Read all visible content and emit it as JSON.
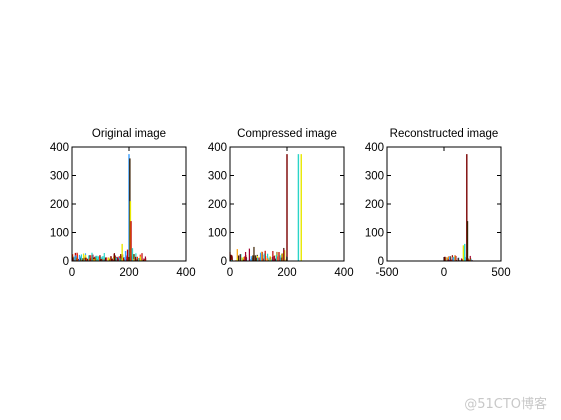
{
  "watermark": "@51CTO博客",
  "colors": [
    "#3aa0ff",
    "#2bd4c8",
    "#e8e800",
    "#ff9f00",
    "#ff2a00",
    "#c00000",
    "#7a0000",
    "#3a2000",
    "#9a7000",
    "#a00030"
  ],
  "chart_data": [
    {
      "type": "bar",
      "title": "Original image",
      "xlim": [
        0,
        400
      ],
      "ylim": [
        0,
        400
      ],
      "xticks": [
        0,
        200,
        400
      ],
      "yticks": [
        0,
        100,
        200,
        300,
        400
      ],
      "grid": false,
      "spikes": [
        {
          "x": 200,
          "y": 375,
          "color": "#3aa0ff"
        },
        {
          "x": 203,
          "y": 360,
          "color": "#3a2000"
        },
        {
          "x": 205,
          "y": 210,
          "color": "#e8e800"
        },
        {
          "x": 207,
          "y": 140,
          "color": "#c00000"
        },
        {
          "x": 176,
          "y": 60,
          "color": "#e8e800"
        },
        {
          "x": 212,
          "y": 45,
          "color": "#2bd4c8"
        },
        {
          "x": 188,
          "y": 35,
          "color": "#3aa0ff"
        },
        {
          "x": 195,
          "y": 40,
          "color": "#c00000"
        }
      ],
      "noise": {
        "x_range": [
          0,
          260
        ],
        "y_max": 30,
        "count": 240,
        "seed": 7
      }
    },
    {
      "type": "bar",
      "title": "Compressed image",
      "xlim": [
        0,
        400
      ],
      "ylim": [
        0,
        400
      ],
      "xticks": [
        0,
        200,
        400
      ],
      "yticks": [
        0,
        100,
        200,
        300,
        400
      ],
      "grid": false,
      "spikes": [
        {
          "x": 200,
          "y": 375,
          "color": "#7a0000"
        },
        {
          "x": 240,
          "y": 375,
          "color": "#2bd4c8"
        },
        {
          "x": 250,
          "y": 375,
          "color": "#e8e800"
        }
      ],
      "noise": {
        "x_range": [
          0,
          200
        ],
        "y_max": 55,
        "count": 90,
        "seed": 21
      }
    },
    {
      "type": "bar",
      "title": "Reconstructed image",
      "xlim": [
        -500,
        500
      ],
      "ylim": [
        0,
        400
      ],
      "xticks": [
        -500,
        0,
        500
      ],
      "yticks": [
        0,
        100,
        200,
        300,
        400
      ],
      "grid": false,
      "spikes": [
        {
          "x": 200,
          "y": 375,
          "color": "#7a0000"
        },
        {
          "x": 206,
          "y": 140,
          "color": "#3a2000"
        },
        {
          "x": 170,
          "y": 55,
          "color": "#e8e800"
        },
        {
          "x": 182,
          "y": 60,
          "color": "#2bd4c8"
        }
      ],
      "noise": {
        "x_range": [
          0,
          260
        ],
        "y_max": 25,
        "count": 80,
        "seed": 33
      }
    }
  ]
}
